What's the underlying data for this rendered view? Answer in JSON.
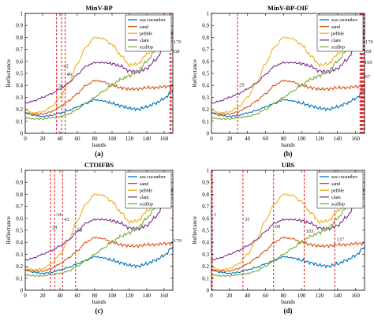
{
  "chart_data": [
    {
      "id": "a",
      "type": "line",
      "title": "MinV-BP",
      "panel_label": "(a)",
      "xlabel": "bands",
      "ylabel": "Reflectance",
      "xlim": [
        0,
        170
      ],
      "ylim": [
        0,
        1
      ],
      "xticks": [
        0,
        20,
        40,
        60,
        80,
        100,
        120,
        140,
        160
      ],
      "yticks": [
        0,
        0.1,
        0.2,
        0.3,
        0.4,
        0.5,
        0.6,
        0.7,
        0.8,
        0.9,
        1
      ],
      "legend": "top-right",
      "selected_bands": [
        {
          "band": 36,
          "label": "36",
          "label_y": 0.38
        },
        {
          "band": 42,
          "label": "42",
          "label_y": 0.55
        },
        {
          "band": 46,
          "label": "46",
          "label_y": 0.48
        },
        {
          "band": 167,
          "label": "167",
          "label_y": 0
        },
        {
          "band": 168,
          "label": "168",
          "label_y": 0.67
        },
        {
          "band": 170,
          "label": "170",
          "label_y": 0.75
        }
      ]
    },
    {
      "id": "b",
      "type": "line",
      "title": "MinV-BP-OIF",
      "panel_label": "(b)",
      "xlabel": "bands",
      "ylabel": "Reflectance",
      "xlim": [
        0,
        170
      ],
      "ylim": [
        0,
        1
      ],
      "xticks": [
        0,
        20,
        40,
        60,
        80,
        100,
        120,
        140,
        160
      ],
      "yticks": [
        0,
        0.1,
        0.2,
        0.3,
        0.4,
        0.5,
        0.6,
        0.7,
        0.8,
        0.9,
        1
      ],
      "legend": "top-right",
      "selected_bands": [
        {
          "band": 29,
          "label": "29",
          "label_y": 0.39
        },
        {
          "band": 165,
          "label": "165",
          "label_y": 0
        },
        {
          "band": 166,
          "label": "166",
          "label_y": 0
        },
        {
          "band": 167,
          "label": "167",
          "label_y": 0.46
        },
        {
          "band": 168,
          "label": "168",
          "label_y": 0.67
        },
        {
          "band": 169,
          "label": "169",
          "label_y": 0.58
        },
        {
          "band": 170,
          "label": "170",
          "label_y": 0.75
        }
      ]
    },
    {
      "id": "c",
      "type": "line",
      "title": "CTOIFBS",
      "panel_label": "(c)",
      "xlabel": "bands",
      "ylabel": "Reflectance",
      "xlim": [
        0,
        170
      ],
      "ylim": [
        0,
        1
      ],
      "xticks": [
        0,
        20,
        40,
        60,
        80,
        100,
        120,
        140,
        160
      ],
      "yticks": [
        0,
        0.1,
        0.2,
        0.3,
        0.4,
        0.5,
        0.6,
        0.7,
        0.8,
        0.9,
        1
      ],
      "legend": "top-right",
      "selected_bands": [
        {
          "band": 29,
          "label": "29",
          "label_y": 0.51
        },
        {
          "band": 34,
          "label": "34",
          "label_y": 0.62
        },
        {
          "band": 43,
          "label": "43",
          "label_y": 0.58
        },
        {
          "band": 58,
          "label": "58",
          "label_y": 0.49
        },
        {
          "band": 170,
          "label": "170",
          "label_y": 0.4
        }
      ]
    },
    {
      "id": "d",
      "type": "line",
      "title": "UBS",
      "panel_label": "(d)",
      "xlabel": "bands",
      "ylabel": "Reflectance",
      "xlim": [
        0,
        170
      ],
      "ylim": [
        0,
        1
      ],
      "xticks": [
        0,
        20,
        40,
        60,
        80,
        100,
        120,
        140,
        160
      ],
      "yticks": [
        0,
        0.1,
        0.2,
        0.3,
        0.4,
        0.5,
        0.6,
        0.7,
        0.8,
        0.9,
        1
      ],
      "legend": "top-right",
      "selected_bands": [
        {
          "band": 1,
          "label": "1",
          "label_y": 0.62
        },
        {
          "band": 35,
          "label": "35",
          "label_y": 0.58
        },
        {
          "band": 69,
          "label": "69",
          "label_y": 0.52
        },
        {
          "band": 103,
          "label": "103",
          "label_y": 0.48
        },
        {
          "band": 137,
          "label": "137",
          "label_y": 0.41
        }
      ]
    }
  ],
  "series_defs": [
    {
      "name": "sea cucumber",
      "color": "#0072BD"
    },
    {
      "name": "sand",
      "color": "#D95319"
    },
    {
      "name": "pebble",
      "color": "#EDB120"
    },
    {
      "name": "clam",
      "color": "#7E2F8E"
    },
    {
      "name": "scallop",
      "color": "#77AC30"
    }
  ],
  "spectra": {
    "x": [
      0,
      10,
      20,
      30,
      40,
      50,
      60,
      70,
      80,
      90,
      100,
      110,
      120,
      130,
      140,
      150,
      160,
      170
    ],
    "sea cucumber": [
      0.17,
      0.15,
      0.14,
      0.15,
      0.17,
      0.19,
      0.22,
      0.25,
      0.28,
      0.27,
      0.25,
      0.23,
      0.21,
      0.2,
      0.22,
      0.25,
      0.29,
      0.36
    ],
    "sand": [
      0.17,
      0.16,
      0.16,
      0.18,
      0.22,
      0.27,
      0.33,
      0.4,
      0.44,
      0.43,
      0.4,
      0.38,
      0.37,
      0.37,
      0.38,
      0.38,
      0.39,
      0.39
    ],
    "pebble": [
      0.19,
      0.17,
      0.18,
      0.22,
      0.3,
      0.42,
      0.58,
      0.72,
      0.8,
      0.79,
      0.74,
      0.65,
      0.57,
      0.58,
      0.66,
      0.73,
      0.76,
      0.77
    ],
    "clam": [
      0.25,
      0.27,
      0.3,
      0.33,
      0.37,
      0.42,
      0.49,
      0.56,
      0.59,
      0.59,
      0.58,
      0.56,
      0.52,
      0.51,
      0.54,
      0.61,
      0.72,
      0.84
    ],
    "scallop": [
      0.13,
      0.12,
      0.12,
      0.13,
      0.14,
      0.16,
      0.2,
      0.25,
      0.3,
      0.35,
      0.4,
      0.45,
      0.48,
      0.52,
      0.6,
      0.69,
      0.77,
      0.84
    ]
  }
}
